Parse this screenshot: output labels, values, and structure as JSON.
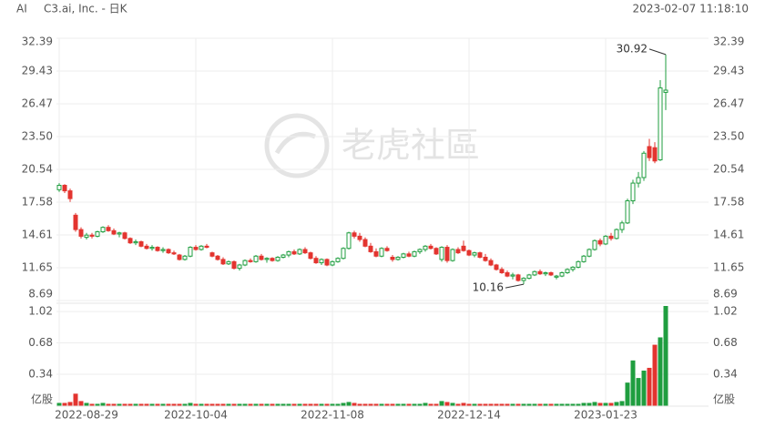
{
  "chart_data": {
    "type": "candlestick",
    "symbol": "AI",
    "title": "C3.ai, Inc. - 日K",
    "timestamp": "2023-02-07 11:18:10",
    "watermark": "老虎社區",
    "up_color": "#1f9e3f",
    "down_color": "#e3342f",
    "grid": true,
    "categories": [
      "2022-08-29",
      null,
      null,
      null,
      null,
      null,
      null,
      null,
      null,
      null,
      null,
      null,
      null,
      null,
      null,
      null,
      null,
      null,
      null,
      null,
      null,
      null,
      null,
      null,
      null,
      "2022-10-04",
      null,
      null,
      null,
      null,
      null,
      null,
      null,
      null,
      null,
      null,
      null,
      null,
      null,
      null,
      null,
      null,
      null,
      null,
      null,
      null,
      null,
      null,
      null,
      null,
      "2022-11-08",
      null,
      null,
      null,
      null,
      null,
      null,
      null,
      null,
      null,
      null,
      null,
      null,
      null,
      null,
      null,
      null,
      null,
      null,
      null,
      null,
      null,
      null,
      null,
      null,
      "2022-12-14",
      null,
      null,
      null,
      null,
      null,
      null,
      null,
      null,
      null,
      null,
      null,
      null,
      null,
      null,
      null,
      null,
      null,
      null,
      null,
      null,
      null,
      null,
      null,
      null,
      "2023-01-23",
      null,
      null,
      null,
      null,
      null,
      null,
      null,
      null,
      null,
      null,
      null
    ],
    "open": [
      18.7,
      19.1,
      18.6,
      16.4,
      15.1,
      14.4,
      14.6,
      14.5,
      14.9,
      15.3,
      15.0,
      14.7,
      14.8,
      14.3,
      13.9,
      14.0,
      13.6,
      13.4,
      13.5,
      13.2,
      13.3,
      13.0,
      12.8,
      12.4,
      12.7,
      13.5,
      13.3,
      13.6,
      13.0,
      12.7,
      12.4,
      12.0,
      12.2,
      11.6,
      11.9,
      12.3,
      12.2,
      12.7,
      12.4,
      12.5,
      12.3,
      12.6,
      12.8,
      13.1,
      12.9,
      13.3,
      13.0,
      12.5,
      12.1,
      12.4,
      11.9,
      12.2,
      12.5,
      13.4,
      14.8,
      14.5,
      14.2,
      13.6,
      13.1,
      12.7,
      13.4,
      12.6,
      12.4,
      12.6,
      12.9,
      12.7,
      13.1,
      13.3,
      13.6,
      13.4,
      12.4,
      13.5,
      12.3,
      13.3,
      13.6,
      13.2,
      12.8,
      13.0,
      12.6,
      12.3,
      11.9,
      11.5,
      11.2,
      10.9,
      11.0,
      10.5,
      10.7,
      11.0,
      11.3,
      11.1,
      11.2,
      10.8,
      10.9,
      11.2,
      11.5,
      11.7,
      12.2,
      12.7,
      13.3,
      14.1,
      13.8,
      14.5,
      14.3,
      15.1,
      15.7,
      17.7,
      19.3,
      19.8,
      22.6,
      22.5,
      21.4,
      27.5
    ],
    "high": [
      19.3,
      19.2,
      18.8,
      16.6,
      15.3,
      14.8,
      14.8,
      15.0,
      15.4,
      15.5,
      15.2,
      14.9,
      14.9,
      14.4,
      14.2,
      14.1,
      13.8,
      13.7,
      13.6,
      13.5,
      13.4,
      13.2,
      12.9,
      12.8,
      13.6,
      13.7,
      13.7,
      13.8,
      13.1,
      12.8,
      12.6,
      12.3,
      12.3,
      12.0,
      12.4,
      12.5,
      12.8,
      12.9,
      12.6,
      12.6,
      12.7,
      12.9,
      13.2,
      13.3,
      13.4,
      13.5,
      13.1,
      12.7,
      12.5,
      12.5,
      12.3,
      12.6,
      13.5,
      14.9,
      15.0,
      14.8,
      14.4,
      13.9,
      13.4,
      13.5,
      13.6,
      12.8,
      12.7,
      13.0,
      13.1,
      13.2,
      13.4,
      13.7,
      13.8,
      13.5,
      13.6,
      13.7,
      13.4,
      13.5,
      14.1,
      13.3,
      13.1,
      13.1,
      12.9,
      12.5,
      12.0,
      11.7,
      11.4,
      11.2,
      11.1,
      10.8,
      11.1,
      11.4,
      11.5,
      11.3,
      11.3,
      11.0,
      11.3,
      11.6,
      11.8,
      12.3,
      12.8,
      13.4,
      14.2,
      14.3,
      14.6,
      14.8,
      15.2,
      15.9,
      17.9,
      19.6,
      20.3,
      22.2,
      23.3,
      23.0,
      28.6,
      30.92
    ],
    "low": [
      18.5,
      18.4,
      17.6,
      14.9,
      14.3,
      14.2,
      14.3,
      14.4,
      14.8,
      14.9,
      14.6,
      14.4,
      14.2,
      13.8,
      13.7,
      13.5,
      13.3,
      13.2,
      13.1,
      13.0,
      12.9,
      12.8,
      12.3,
      12.3,
      12.6,
      13.2,
      13.2,
      13.4,
      12.6,
      12.3,
      11.9,
      11.9,
      11.5,
      11.4,
      11.8,
      12.1,
      12.1,
      12.3,
      12.1,
      12.2,
      12.2,
      12.5,
      12.6,
      12.8,
      12.8,
      12.9,
      12.4,
      12.0,
      11.9,
      11.8,
      11.8,
      12.1,
      12.4,
      13.3,
      14.3,
      14.0,
      13.5,
      13.0,
      12.6,
      12.6,
      13.1,
      12.2,
      12.3,
      12.5,
      12.6,
      12.6,
      12.9,
      13.1,
      13.3,
      12.8,
      12.2,
      12.1,
      12.2,
      12.9,
      13.1,
      12.7,
      12.6,
      12.5,
      12.2,
      11.8,
      11.4,
      11.1,
      10.8,
      10.6,
      10.4,
      10.16,
      10.6,
      10.9,
      11.0,
      10.9,
      10.9,
      10.6,
      10.8,
      11.1,
      11.3,
      11.6,
      12.1,
      12.6,
      13.2,
      13.6,
      13.7,
      14.1,
      14.2,
      14.8,
      15.6,
      17.4,
      18.9,
      19.5,
      21.3,
      21.1,
      21.3,
      25.9
    ],
    "close": [
      19.1,
      18.6,
      17.9,
      15.1,
      14.5,
      14.6,
      14.5,
      14.9,
      15.3,
      15.0,
      14.7,
      14.8,
      14.3,
      13.9,
      14.0,
      13.6,
      13.4,
      13.5,
      13.2,
      13.3,
      13.0,
      12.9,
      12.4,
      12.7,
      13.5,
      13.3,
      13.6,
      13.5,
      12.7,
      12.4,
      12.0,
      12.2,
      11.6,
      11.9,
      12.3,
      12.2,
      12.7,
      12.4,
      12.5,
      12.3,
      12.6,
      12.8,
      13.1,
      12.9,
      13.3,
      13.0,
      12.5,
      12.1,
      12.4,
      11.9,
      12.2,
      12.5,
      13.4,
      14.8,
      14.5,
      14.2,
      13.6,
      13.1,
      12.7,
      13.4,
      13.2,
      12.4,
      12.6,
      12.9,
      12.7,
      13.1,
      13.3,
      13.6,
      13.4,
      12.9,
      13.5,
      12.3,
      13.3,
      13.0,
      13.2,
      12.8,
      13.0,
      12.6,
      12.3,
      11.9,
      11.5,
      11.2,
      10.9,
      11.0,
      10.5,
      10.7,
      11.0,
      11.3,
      11.1,
      11.2,
      11.0,
      10.9,
      11.2,
      11.5,
      11.7,
      12.2,
      12.7,
      13.3,
      14.1,
      13.8,
      14.5,
      14.3,
      15.1,
      15.7,
      17.7,
      19.3,
      19.8,
      22.0,
      21.6,
      21.3,
      27.9,
      27.7
    ],
    "volume": [
      0.03,
      0.03,
      0.04,
      0.13,
      0.05,
      0.03,
      0.02,
      0.02,
      0.03,
      0.02,
      0.02,
      0.02,
      0.02,
      0.02,
      0.02,
      0.02,
      0.02,
      0.02,
      0.02,
      0.02,
      0.02,
      0.02,
      0.02,
      0.02,
      0.03,
      0.02,
      0.02,
      0.02,
      0.02,
      0.02,
      0.02,
      0.02,
      0.02,
      0.02,
      0.02,
      0.02,
      0.02,
      0.02,
      0.02,
      0.02,
      0.02,
      0.02,
      0.02,
      0.02,
      0.02,
      0.02,
      0.02,
      0.02,
      0.02,
      0.02,
      0.02,
      0.02,
      0.03,
      0.04,
      0.03,
      0.02,
      0.02,
      0.02,
      0.02,
      0.02,
      0.02,
      0.02,
      0.02,
      0.02,
      0.02,
      0.02,
      0.02,
      0.03,
      0.02,
      0.02,
      0.05,
      0.04,
      0.03,
      0.02,
      0.03,
      0.02,
      0.02,
      0.02,
      0.02,
      0.02,
      0.02,
      0.02,
      0.02,
      0.02,
      0.02,
      0.02,
      0.02,
      0.02,
      0.02,
      0.02,
      0.02,
      0.02,
      0.02,
      0.02,
      0.02,
      0.02,
      0.03,
      0.03,
      0.04,
      0.03,
      0.03,
      0.03,
      0.04,
      0.05,
      0.25,
      0.49,
      0.3,
      0.38,
      0.41,
      0.66,
      0.74,
      1.08
    ],
    "ylim": [
      8.69,
      32.39
    ],
    "yticks": [
      8.69,
      11.65,
      14.61,
      17.58,
      {
        "value": 20.54,
        "label": "20.54"
      },
      {
        "value": 23.5,
        "label": "23.50"
      },
      26.47,
      29.43,
      32.39
    ],
    "volume_ylim": [
      0,
      1.08
    ],
    "volume_yticks": [
      0.34,
      0.68,
      1.02
    ],
    "volume_unit": "亿股"
  }
}
